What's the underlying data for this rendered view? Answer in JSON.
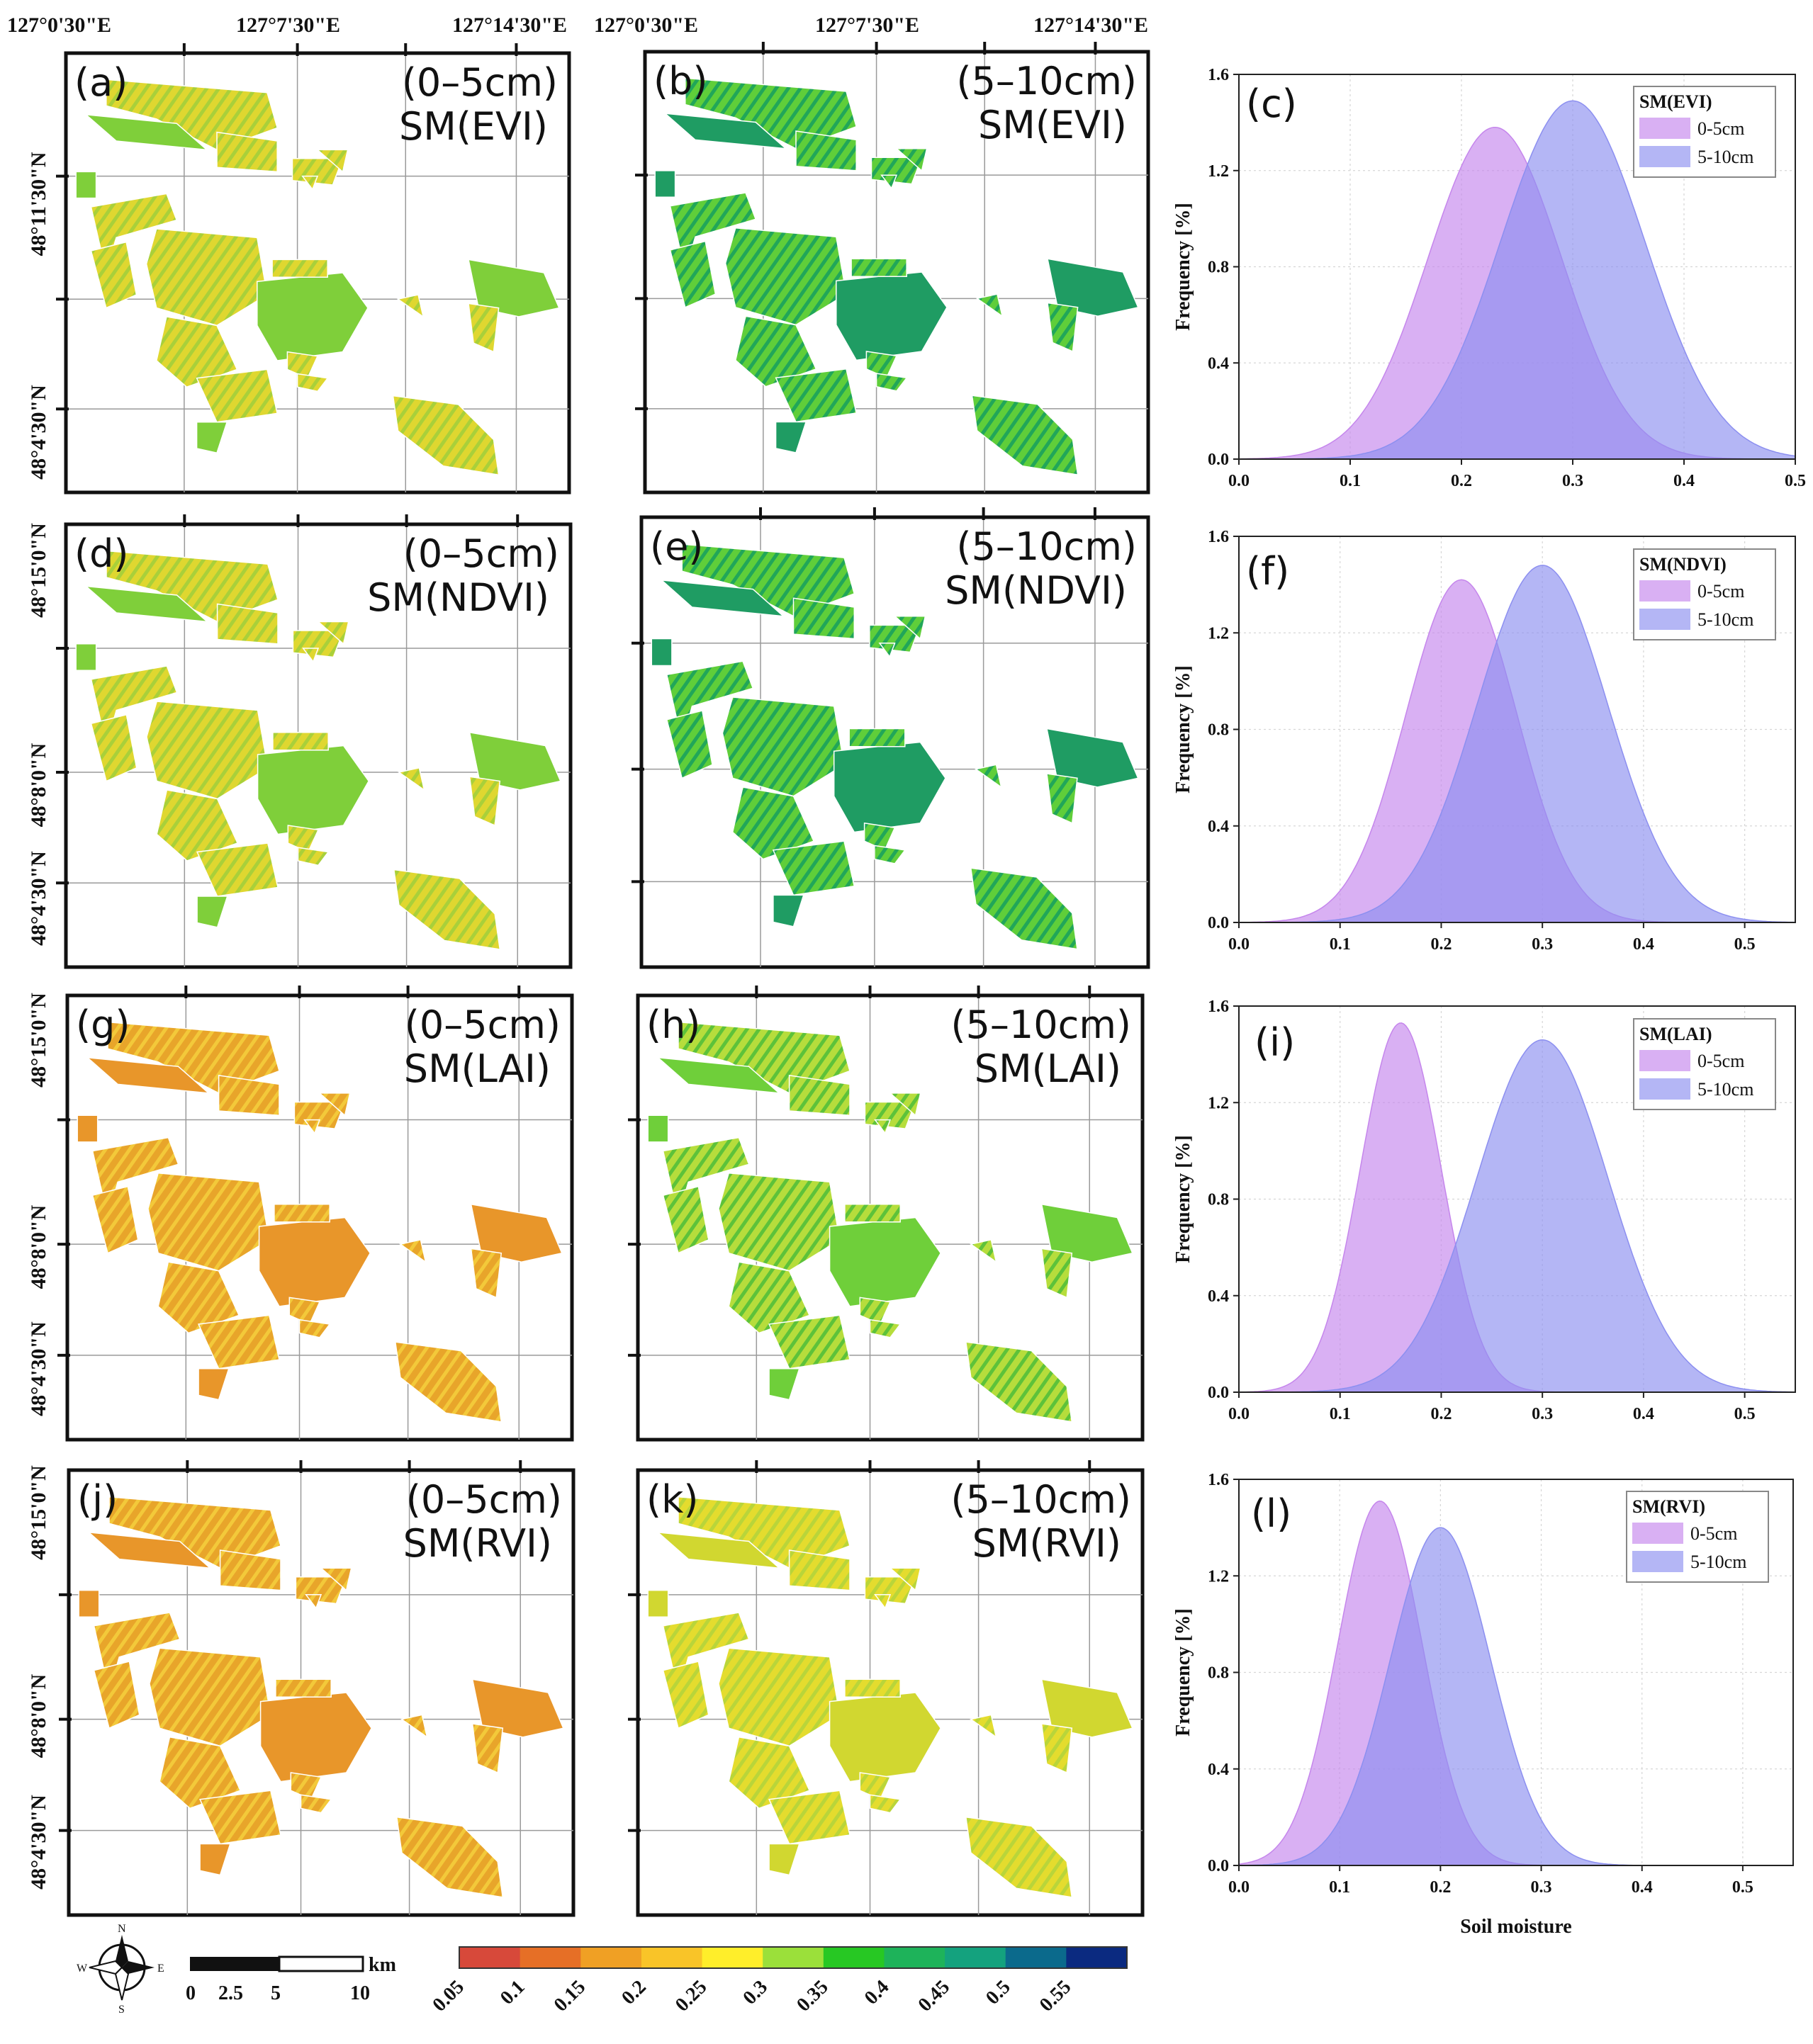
{
  "lon_labels": [
    "127°0'30\"E",
    "127°7'30\"E",
    "127°14'30\"E"
  ],
  "lat_rows": [
    [
      "48°11'30\"N",
      "48°4'30\"N"
    ],
    [
      "48°15'0\"N",
      "48°8'0\"N",
      "48°4'30\"N"
    ],
    [
      "48°15'0\"N",
      "48°8'0\"N",
      "48°4'30\"N"
    ],
    [
      "48°15'0\"N",
      "48°8'0\"N",
      "48°4'30\"N"
    ]
  ],
  "maps": [
    {
      "letter": "(a)",
      "depth": "(0–5cm)",
      "model": "SM(EVI)",
      "palette": "yellow"
    },
    {
      "letter": "(b)",
      "depth": "(5–10cm)",
      "model": "SM(EVI)",
      "palette": "green"
    },
    {
      "letter": "(d)",
      "depth": "(0–5cm)",
      "model": "SM(NDVI)",
      "palette": "yellow"
    },
    {
      "letter": "(e)",
      "depth": "(5–10cm)",
      "model": "SM(NDVI)",
      "palette": "green"
    },
    {
      "letter": "(g)",
      "depth": "(0–5cm)",
      "model": "SM(LAI)",
      "palette": "orange"
    },
    {
      "letter": "(h)",
      "depth": "(5–10cm)",
      "model": "SM(LAI)",
      "palette": "lightgreen"
    },
    {
      "letter": "(j)",
      "depth": "(0–5cm)",
      "model": "SM(RVI)",
      "palette": "orange"
    },
    {
      "letter": "(k)",
      "depth": "(5–10cm)",
      "model": "SM(RVI)",
      "palette": "yellowgreen"
    }
  ],
  "chart_data": [
    {
      "panel": "(c)",
      "type": "area",
      "legend_title": "SM(EVI)",
      "ylabel": "Frequency [%]",
      "xlabel": "",
      "xlim": [
        0,
        0.5
      ],
      "ylim": [
        0,
        1.6
      ],
      "xticks": [
        "0.0",
        "0.1",
        "0.2",
        "0.3",
        "0.4",
        "0.5"
      ],
      "yticks": [
        "0.0",
        "0.4",
        "0.8",
        "1.2",
        "1.6"
      ],
      "series": [
        {
          "name": "0-5cm",
          "peak_x": 0.23,
          "peak_y": 1.38,
          "sd": 0.06,
          "color": "#c586ec"
        },
        {
          "name": "5-10cm",
          "peak_x": 0.3,
          "peak_y": 1.49,
          "sd": 0.065,
          "color": "#8c8ff0"
        }
      ]
    },
    {
      "panel": "(f)",
      "type": "area",
      "legend_title": "SM(NDVI)",
      "ylabel": "Frequency [%]",
      "xlabel": "",
      "xlim": [
        0,
        0.55
      ],
      "ylim": [
        0,
        1.6
      ],
      "xticks": [
        "0.0",
        "0.1",
        "0.2",
        "0.3",
        "0.4",
        "0.5"
      ],
      "yticks": [
        "0.0",
        "0.4",
        "0.8",
        "1.2",
        "1.6"
      ],
      "series": [
        {
          "name": "0-5cm",
          "peak_x": 0.22,
          "peak_y": 1.42,
          "sd": 0.055,
          "color": "#c586ec"
        },
        {
          "name": "5-10cm",
          "peak_x": 0.3,
          "peak_y": 1.48,
          "sd": 0.065,
          "color": "#8c8ff0"
        }
      ]
    },
    {
      "panel": "(i)",
      "type": "area",
      "legend_title": "SM(LAI)",
      "ylabel": "Frequency [%]",
      "xlabel": "",
      "xlim": [
        0,
        0.55
      ],
      "ylim": [
        0,
        1.6
      ],
      "xticks": [
        "0.0",
        "0.1",
        "0.2",
        "0.3",
        "0.4",
        "0.5"
      ],
      "yticks": [
        "0.0",
        "0.4",
        "0.8",
        "1.2",
        "1.6"
      ],
      "series": [
        {
          "name": "0-5cm",
          "peak_x": 0.16,
          "peak_y": 1.53,
          "sd": 0.04,
          "color": "#c586ec"
        },
        {
          "name": "5-10cm",
          "peak_x": 0.3,
          "peak_y": 1.46,
          "sd": 0.065,
          "color": "#8c8ff0"
        }
      ]
    },
    {
      "panel": "(l)",
      "type": "area",
      "legend_title": "SM(RVI)",
      "ylabel": "Frequency [%]",
      "xlabel": "Soil moisture",
      "xlim": [
        0,
        0.55
      ],
      "ylim": [
        0,
        1.6
      ],
      "xticks": [
        "0.0",
        "0.1",
        "0.2",
        "0.3",
        "0.4",
        "0.5"
      ],
      "yticks": [
        "0.0",
        "0.4",
        "0.8",
        "1.2",
        "1.6"
      ],
      "series": [
        {
          "name": "0-5cm",
          "peak_x": 0.14,
          "peak_y": 1.51,
          "sd": 0.042,
          "color": "#c586ec"
        },
        {
          "name": "5-10cm",
          "peak_x": 0.2,
          "peak_y": 1.4,
          "sd": 0.05,
          "color": "#8c8ff0"
        }
      ]
    }
  ],
  "colorbar": {
    "labels": [
      "0.05",
      "0.1",
      "0.15",
      "0.2",
      "0.25",
      "0.3",
      "0.35",
      "0.4",
      "0.45",
      "0.5",
      "0.55"
    ],
    "colors": [
      "#d7493a",
      "#e66f26",
      "#f0a024",
      "#f9c428",
      "#ffee2a",
      "#9be03a",
      "#27c823",
      "#1eb35a",
      "#14a27e",
      "#0b6a8c",
      "#0b2a80"
    ]
  },
  "scalebar": {
    "unit": "km",
    "ticks": [
      "0",
      "2.5",
      "5",
      "10"
    ]
  },
  "compass": {
    "N": "N",
    "S": "S",
    "E": "E",
    "W": "W"
  }
}
